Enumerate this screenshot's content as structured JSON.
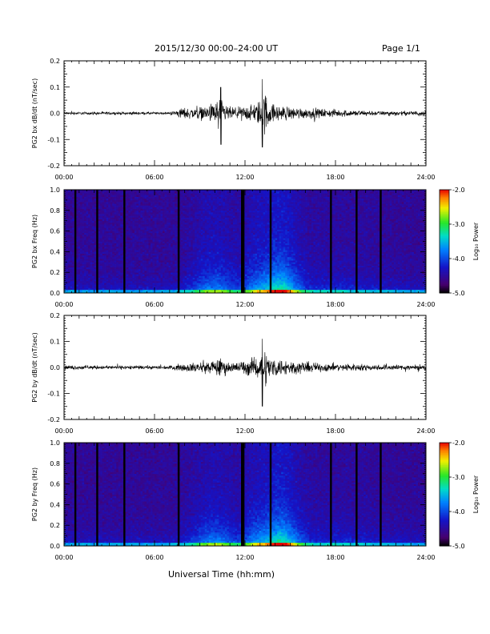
{
  "header": {
    "title": "2015/12/30  00:00–24:00 UT",
    "page": "Page 1/1"
  },
  "footer": {
    "xaxis_title": "Universal Time (hh:mm)"
  },
  "chart_data": [
    {
      "type": "line",
      "ylabel": "PG2 bx dB/dt (nT/sec)",
      "xlim": [
        0,
        24
      ],
      "ylim": [
        -0.2,
        0.2
      ],
      "xticks": [
        "00:00",
        "06:00",
        "12:00",
        "18:00",
        "24:00"
      ],
      "yticks": [
        "-0.2",
        "-0.1",
        "0.0",
        "0.1",
        "0.2"
      ],
      "series": [
        {
          "x": [
            0,
            1,
            2,
            3,
            4,
            5,
            6,
            7,
            7.8,
            8.5,
            9,
            9.5,
            10,
            10.3,
            10.5,
            11,
            11.5,
            12,
            12.5,
            13,
            13.3,
            13.6,
            14,
            15,
            16,
            17,
            18,
            19,
            20,
            21,
            22,
            23,
            24
          ],
          "amplitude": [
            0.008,
            0.008,
            0.008,
            0.008,
            0.008,
            0.008,
            0.007,
            0.007,
            0.03,
            0.03,
            0.035,
            0.04,
            0.06,
            0.1,
            0.06,
            0.035,
            0.03,
            0.04,
            0.05,
            0.07,
            0.125,
            0.06,
            0.045,
            0.035,
            0.03,
            0.025,
            0.02,
            0.018,
            0.015,
            0.012,
            0.012,
            0.012,
            0.015
          ]
        }
      ]
    },
    {
      "type": "heatmap",
      "ylabel": "PG2 bx Freq (Hz)",
      "colorbar_label": "Log₁₀ Power",
      "colorbar_ticks": [
        "-2.0",
        "-3.0",
        "-4.0",
        "-5.0"
      ],
      "zlim": [
        -5.0,
        -2.0
      ],
      "xlim": [
        0,
        24
      ],
      "ylim": [
        0,
        1.0
      ],
      "xticks": [
        "00:00",
        "06:00",
        "12:00",
        "18:00",
        "24:00"
      ],
      "yticks": [
        "0.0",
        "0.2",
        "0.4",
        "0.6",
        "0.8",
        "1.0"
      ],
      "gaps_hours": [
        0.75,
        2.2,
        4.0,
        7.6,
        11.8,
        11.9,
        13.7,
        17.7,
        19.4,
        21.0
      ]
    },
    {
      "type": "line",
      "ylabel": "PG2 by dB/dt (nT/sec)",
      "xlim": [
        0,
        24
      ],
      "ylim": [
        -0.2,
        0.2
      ],
      "xticks": [
        "00:00",
        "06:00",
        "12:00",
        "18:00",
        "24:00"
      ],
      "yticks": [
        "-0.2",
        "-0.1",
        "0.0",
        "0.1",
        "0.2"
      ],
      "series": [
        {
          "x": [
            0,
            1,
            2,
            3,
            4,
            5,
            6,
            7,
            7.8,
            8.5,
            9,
            9.5,
            10,
            10.3,
            10.5,
            11,
            11.5,
            12,
            12.5,
            13,
            13.3,
            13.6,
            14,
            15,
            16,
            17,
            18,
            19,
            20,
            21,
            22,
            23,
            24
          ],
          "amplitude": [
            0.012,
            0.012,
            0.01,
            0.01,
            0.01,
            0.01,
            0.01,
            0.01,
            0.02,
            0.025,
            0.03,
            0.035,
            0.04,
            0.055,
            0.045,
            0.03,
            0.03,
            0.04,
            0.05,
            0.06,
            0.11,
            0.06,
            0.05,
            0.04,
            0.03,
            0.025,
            0.02,
            0.02,
            0.018,
            0.015,
            0.015,
            0.015,
            0.018
          ]
        }
      ]
    },
    {
      "type": "heatmap",
      "ylabel": "PG2 by Freq (Hz)",
      "colorbar_label": "Log₁₀ Power",
      "colorbar_ticks": [
        "-2.0",
        "-3.0",
        "-4.0",
        "-5.0"
      ],
      "zlim": [
        -5.0,
        -2.0
      ],
      "xlim": [
        0,
        24
      ],
      "ylim": [
        0,
        1.0
      ],
      "xticks": [
        "00:00",
        "06:00",
        "12:00",
        "18:00",
        "24:00"
      ],
      "yticks": [
        "0.0",
        "0.2",
        "0.4",
        "0.6",
        "0.8",
        "1.0"
      ],
      "gaps_hours": [
        0.75,
        2.2,
        4.0,
        7.6,
        11.8,
        11.9,
        13.7,
        17.7,
        19.4,
        21.0
      ]
    }
  ]
}
